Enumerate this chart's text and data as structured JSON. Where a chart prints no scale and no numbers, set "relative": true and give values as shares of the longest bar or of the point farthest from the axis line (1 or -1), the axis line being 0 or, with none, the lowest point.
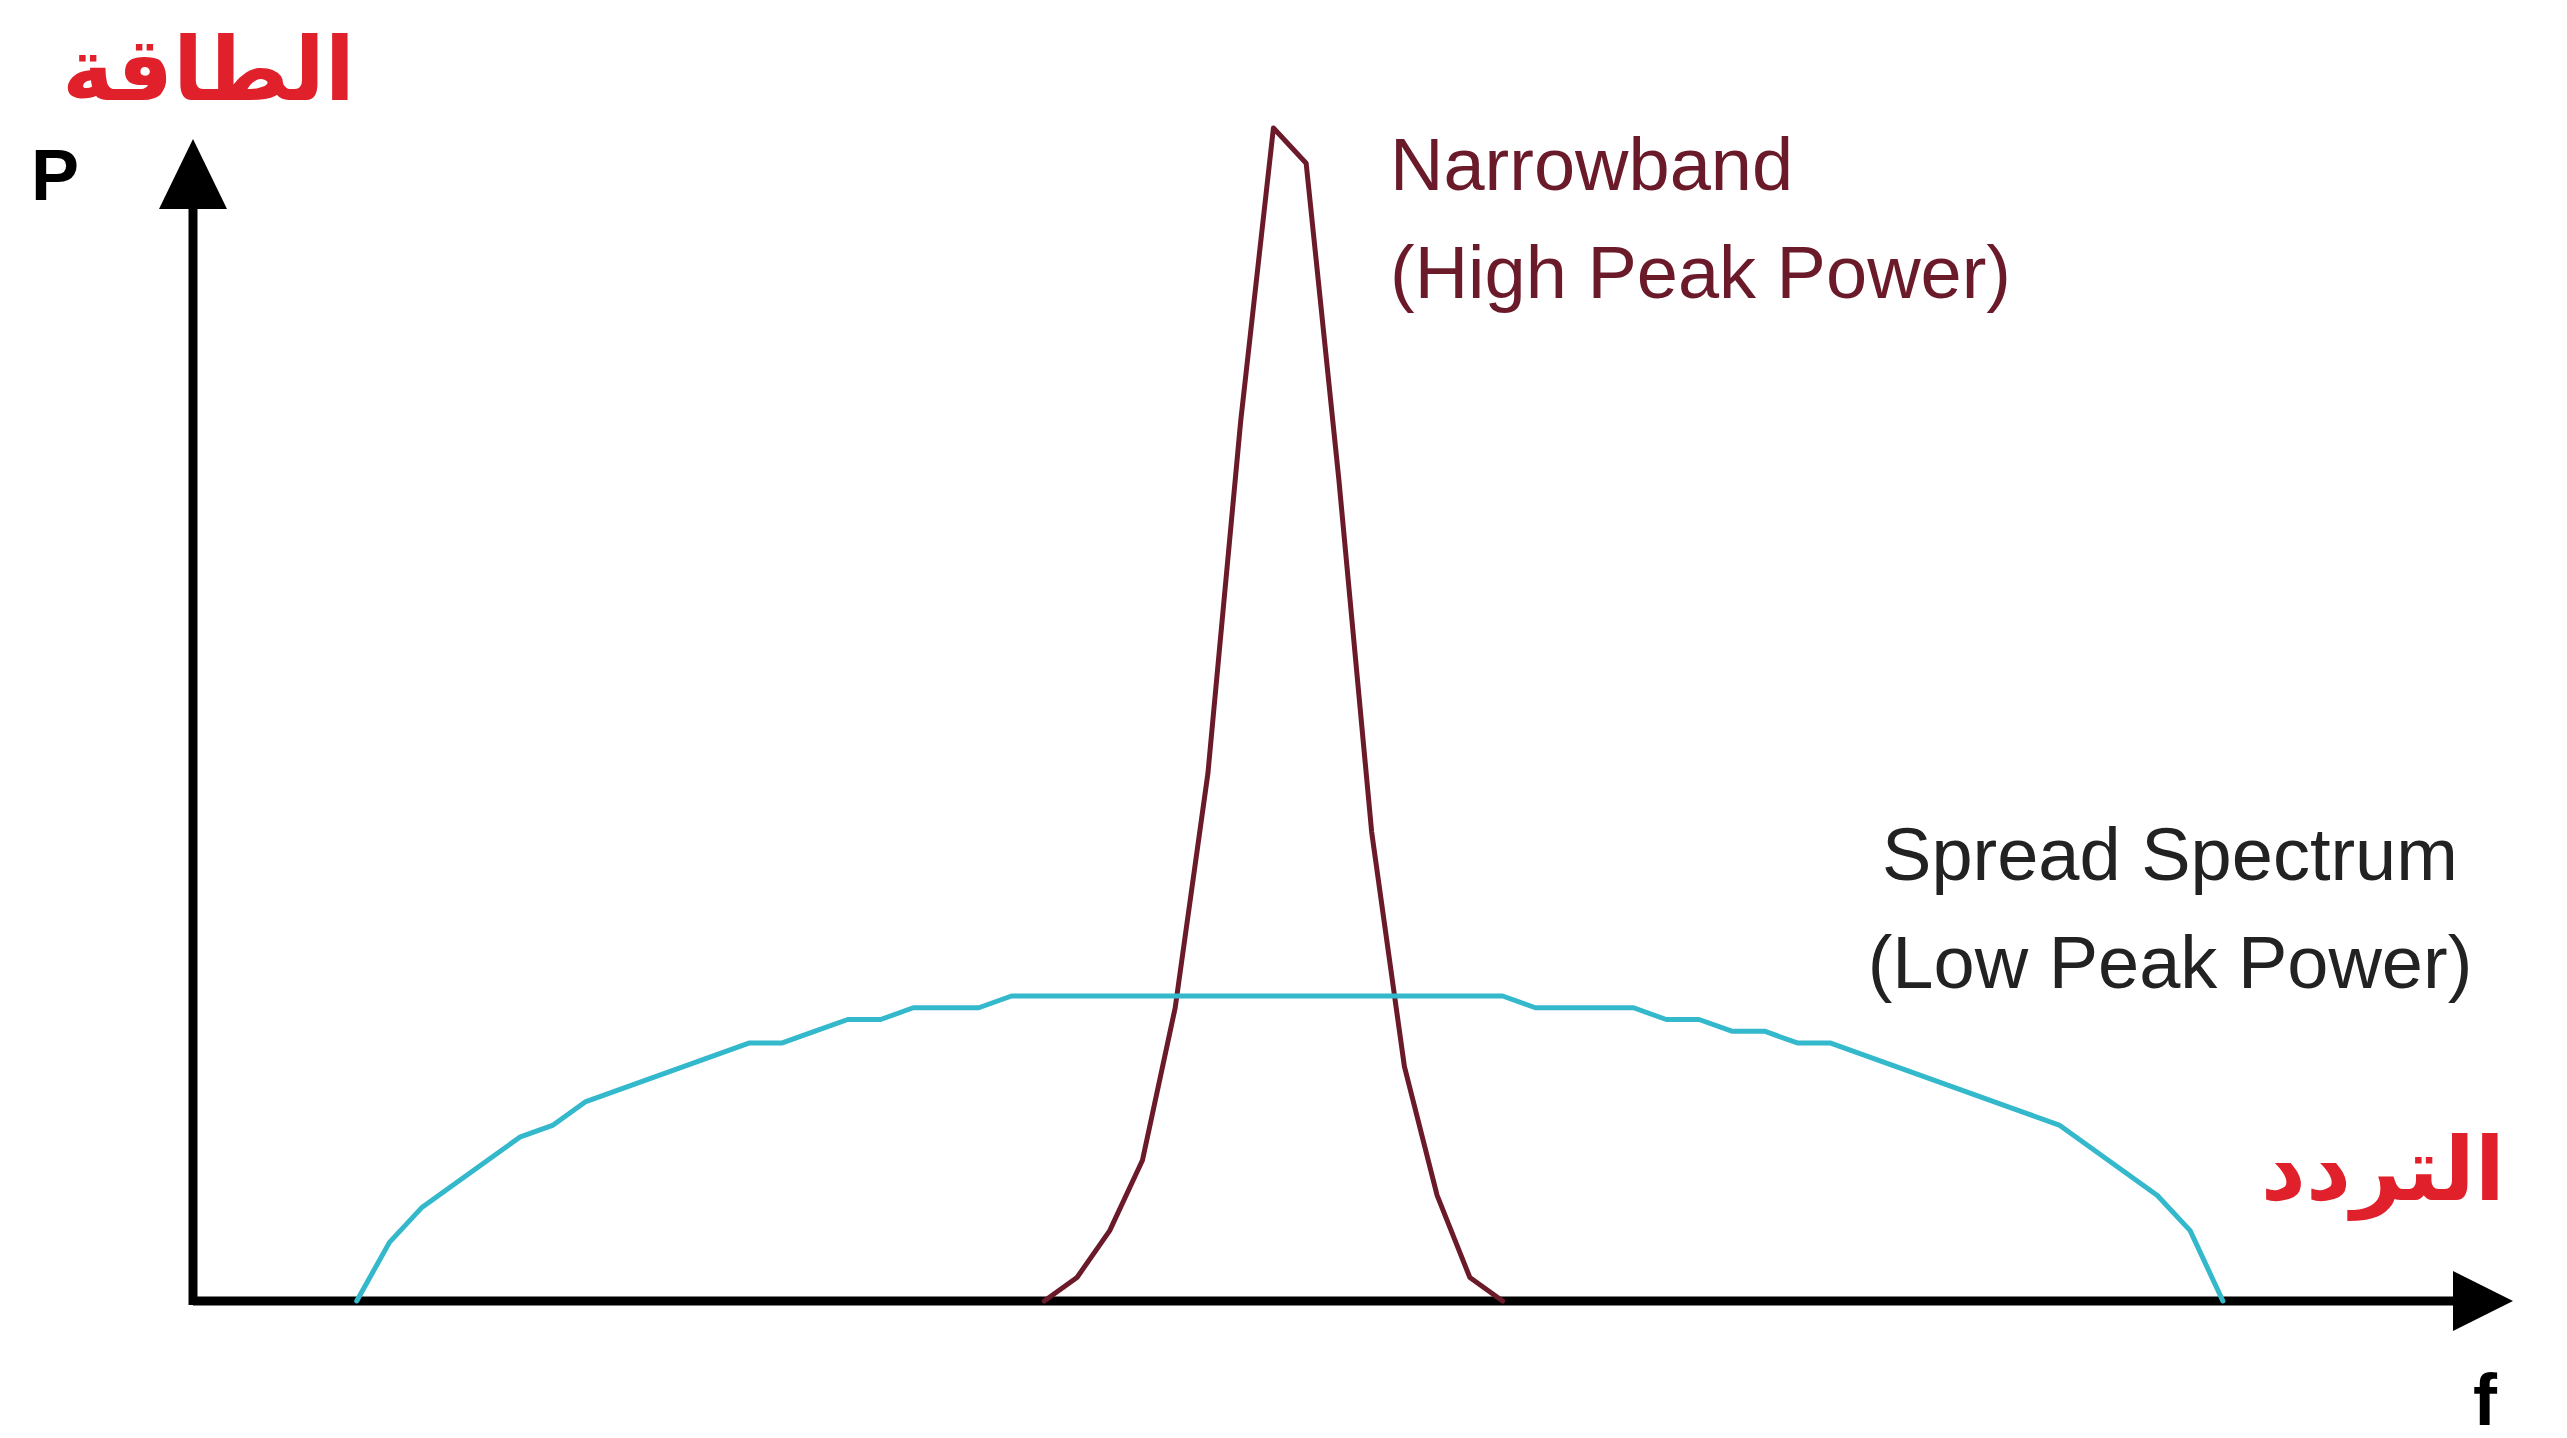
{
  "chart_data": {
    "type": "line",
    "relative": true,
    "xlabel": "f",
    "ylabel": "P",
    "annotations": [
      "الطاقة",
      "التردد"
    ],
    "categories": [
      null,
      null,
      null,
      null,
      null,
      null,
      null,
      null,
      null,
      null,
      null,
      null,
      null,
      null,
      null,
      null,
      null,
      null,
      null,
      null,
      null,
      null,
      null,
      null,
      null,
      null,
      null,
      null,
      null,
      null,
      null,
      null,
      null,
      null,
      null,
      null,
      null,
      null,
      null,
      null,
      null,
      null,
      null,
      null,
      null,
      null,
      null,
      null,
      null,
      null,
      null,
      null,
      null,
      null,
      null,
      null,
      null,
      null,
      null,
      null,
      null,
      null,
      null,
      null,
      null,
      null,
      null,
      null,
      null,
      null,
      null
    ],
    "series": [
      {
        "name": "Narrowband\n(High Peak Power)",
        "color": "#6b1a2a",
        "values": [
          null,
          null,
          null,
          null,
          null,
          null,
          null,
          null,
          null,
          null,
          null,
          null,
          null,
          null,
          null,
          null,
          null,
          null,
          null,
          null,
          null,
          null,
          null,
          null,
          null,
          null,
          0,
          0.02,
          0.06,
          0.12,
          0.25,
          0.45,
          0.75,
          1,
          0.97,
          0.7,
          0.4,
          0.2,
          0.09,
          0.02,
          0,
          null,
          null,
          null,
          null,
          null,
          null,
          null,
          null,
          null,
          null,
          null,
          null,
          null,
          null,
          null,
          null,
          null,
          null,
          null,
          null,
          null,
          null,
          null,
          null,
          null,
          null,
          null,
          null,
          null,
          null
        ]
      },
      {
        "name": "Spread Spectrum\n(Low Peak Power)",
        "color": "#33b8cc",
        "values": [
          null,
          null,
          null,
          null,
          null,
          0,
          0.05,
          0.08,
          0.1,
          0.12,
          0.14,
          0.15,
          0.17,
          0.18,
          0.19,
          0.2,
          0.21,
          0.22,
          0.22,
          0.23,
          0.24,
          0.24,
          0.25,
          0.25,
          0.25,
          0.26,
          0.26,
          0.26,
          0.26,
          0.26,
          0.26,
          0.26,
          0.26,
          0.26,
          0.26,
          0.26,
          0.26,
          0.26,
          0.26,
          0.26,
          0.26,
          0.25,
          0.25,
          0.25,
          0.25,
          0.24,
          0.24,
          0.23,
          0.23,
          0.22,
          0.22,
          0.21,
          0.2,
          0.19,
          0.18,
          0.17,
          0.16,
          0.15,
          0.13,
          0.11,
          0.09,
          0.06,
          0,
          null,
          null,
          null,
          null,
          null,
          null,
          null,
          null
        ]
      }
    ]
  }
}
